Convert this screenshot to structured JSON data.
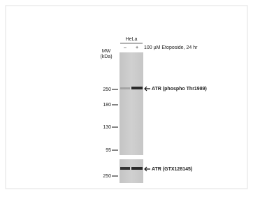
{
  "sample": "HeLa",
  "lanes": [
    "–",
    "+"
  ],
  "treatment": "100 µM Etoposide, 24 hr",
  "mw_title": [
    "MW",
    "(kDa)"
  ],
  "upper_blot": {
    "markers": [
      "250",
      "180",
      "130",
      "95"
    ],
    "label": "ATR (phospho Thr1989)"
  },
  "lower_blot": {
    "markers": [
      "250"
    ],
    "label": "ATR (GTX128145)"
  }
}
